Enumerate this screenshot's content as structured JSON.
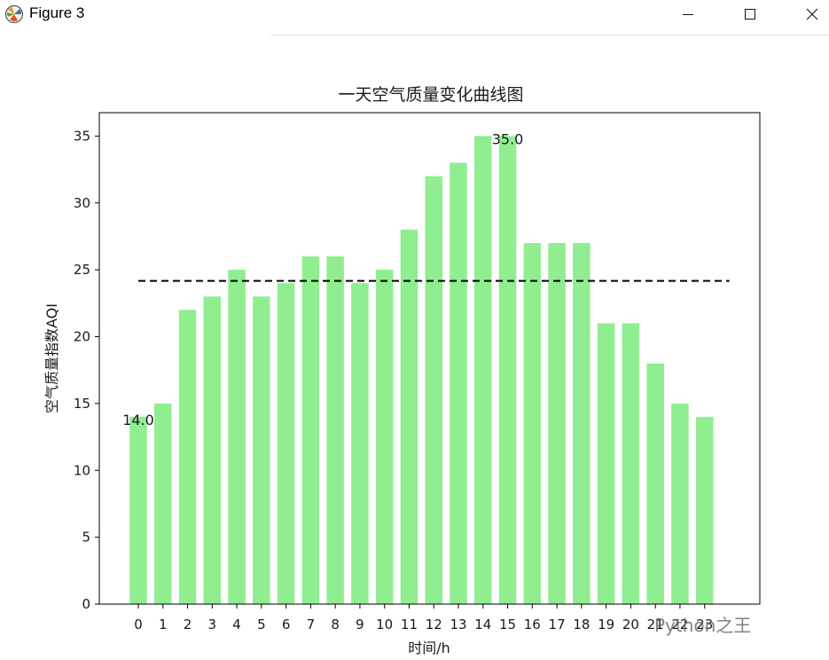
{
  "window": {
    "title": "Figure 3",
    "icon": "matplotlib-figure-icon",
    "controls": [
      "minimize-icon",
      "maximize-icon",
      "close-icon"
    ]
  },
  "watermark": "Python之王",
  "chart_data": {
    "type": "bar",
    "title": "一天空气质量变化曲线图",
    "xlabel": "时间/h",
    "ylabel": "空气质量指数AQI",
    "categories": [
      "0",
      "1",
      "2",
      "3",
      "4",
      "5",
      "6",
      "7",
      "8",
      "9",
      "10",
      "11",
      "12",
      "13",
      "14",
      "15",
      "16",
      "17",
      "18",
      "19",
      "20",
      "21",
      "22",
      "23"
    ],
    "values": [
      14,
      15,
      22,
      23,
      25,
      23,
      24,
      26,
      26,
      24,
      25,
      28,
      32,
      33,
      35,
      35,
      27,
      27,
      27,
      21,
      21,
      18,
      15,
      14
    ],
    "ylim": [
      0,
      36.75
    ],
    "yticks": [
      0,
      5,
      10,
      15,
      20,
      25,
      30,
      35
    ],
    "bar_color": "#90ee90",
    "mean_line": {
      "value": 24.17,
      "style": "dashed",
      "color": "#000000"
    },
    "annotations": [
      {
        "x": "0",
        "value": 14,
        "text": "14.0"
      },
      {
        "x": "15",
        "value": 35,
        "text": "35.0"
      }
    ],
    "grid": false,
    "legend": "none"
  }
}
